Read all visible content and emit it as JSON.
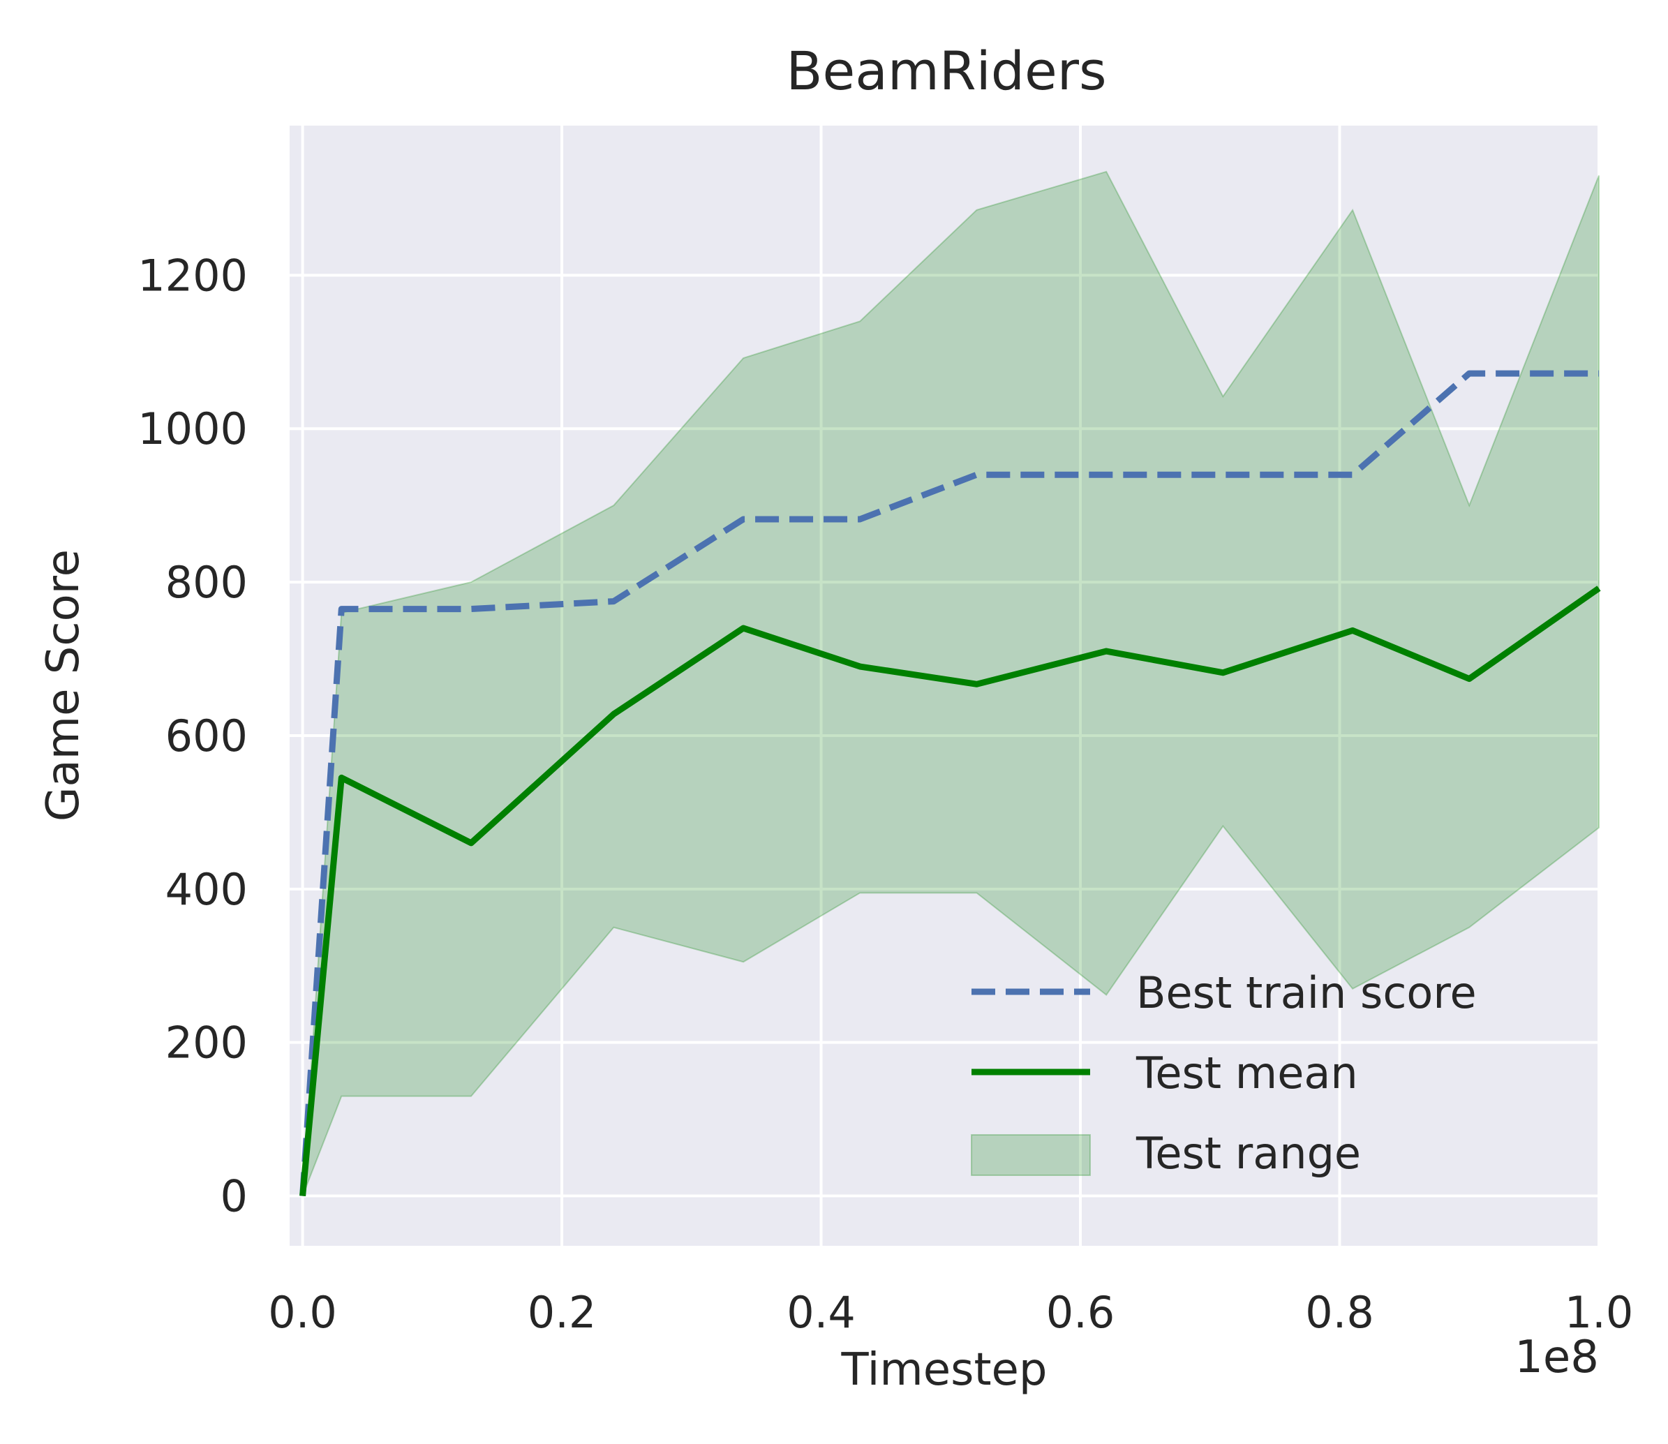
{
  "chart_data": {
    "type": "line",
    "title": "BeamRiders",
    "xlabel": "Timestep",
    "ylabel": "Game Score",
    "x_offset_label": "1e8",
    "xlim": [
      -0.01,
      1.0
    ],
    "ylim": [
      -65,
      1395
    ],
    "x_ticks": [
      0.0,
      0.2,
      0.4,
      0.6,
      0.8,
      1.0
    ],
    "x_tick_labels": [
      "0.0",
      "0.2",
      "0.4",
      "0.6",
      "0.8",
      "1.0"
    ],
    "y_ticks": [
      0,
      200,
      400,
      600,
      800,
      1000,
      1200
    ],
    "y_tick_labels": [
      "0",
      "200",
      "400",
      "600",
      "800",
      "1000",
      "1200"
    ],
    "grid": true,
    "legend_position": "lower-right",
    "series": [
      {
        "name": "Best train score",
        "style": "dashed",
        "color": "#4c72b0",
        "x": [
          0.0,
          0.03,
          0.13,
          0.24,
          0.34,
          0.43,
          0.52,
          0.62,
          0.71,
          0.81,
          0.9,
          1.0
        ],
        "y": [
          0,
          765,
          765,
          775,
          882,
          882,
          940,
          940,
          940,
          940,
          1072,
          1072
        ]
      },
      {
        "name": "Test mean",
        "style": "solid",
        "color": "#008000",
        "x": [
          0.0,
          0.03,
          0.13,
          0.24,
          0.34,
          0.43,
          0.52,
          0.62,
          0.71,
          0.81,
          0.9,
          1.0
        ],
        "y": [
          0,
          545,
          460,
          628,
          740,
          690,
          667,
          710,
          682,
          737,
          674,
          792
        ]
      }
    ],
    "band": {
      "name": "Test range",
      "color": "#008000",
      "x": [
        0.0,
        0.03,
        0.13,
        0.24,
        0.34,
        0.43,
        0.52,
        0.62,
        0.71,
        0.81,
        0.9,
        1.0
      ],
      "lower": [
        0,
        130,
        130,
        350,
        305,
        395,
        395,
        262,
        482,
        270,
        350,
        480
      ],
      "upper": [
        0,
        760,
        800,
        900,
        1092,
        1140,
        1285,
        1335,
        1042,
        1285,
        900,
        1330
      ]
    }
  }
}
